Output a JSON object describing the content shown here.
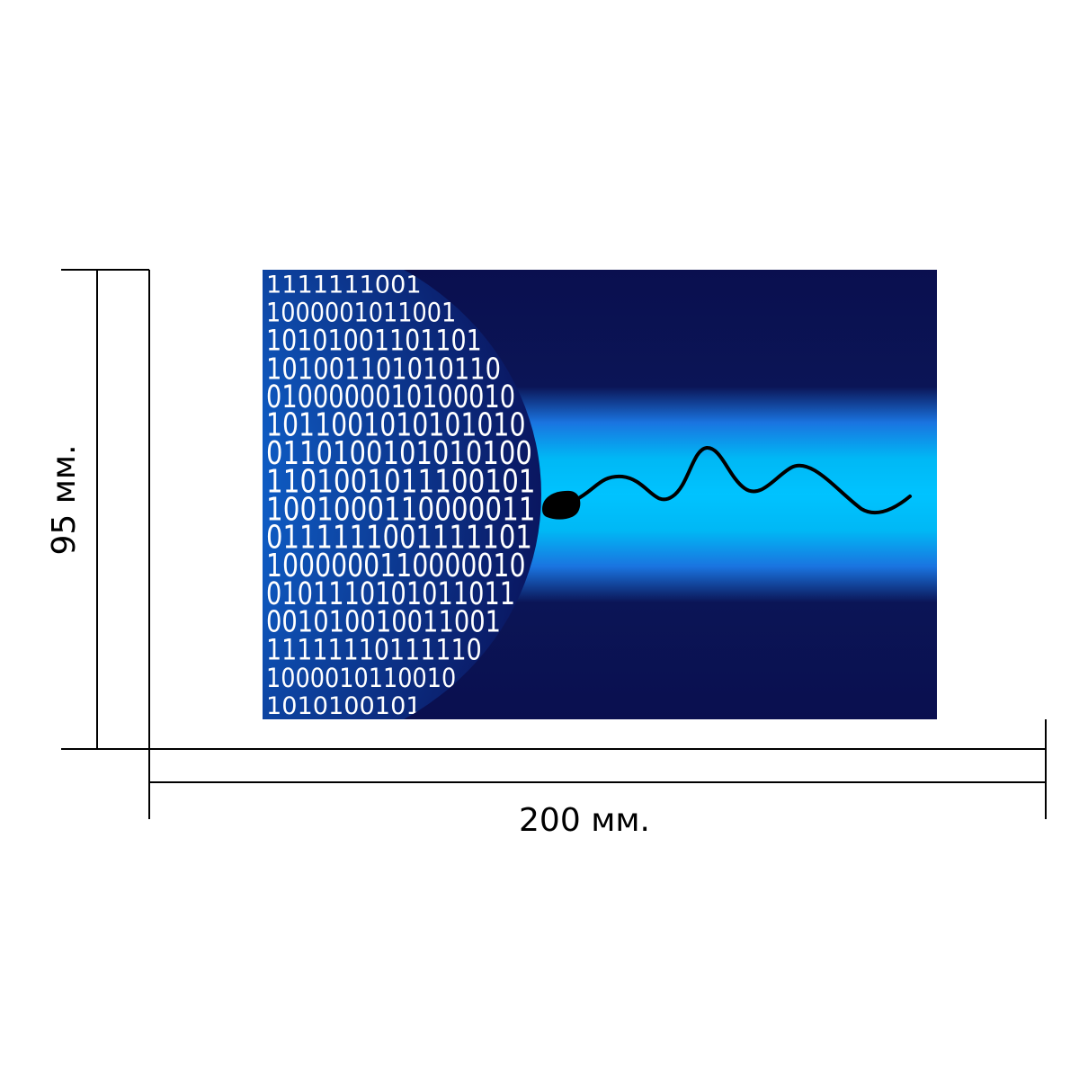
{
  "dimensions": {
    "width_label": "200 мм.",
    "height_label": "95 мм."
  },
  "artwork": {
    "subject": "binary sphere with sperm",
    "colors": {
      "background_dark": "#0a0f4f",
      "glow_light": "#00c3ff",
      "glow_mid": "#1a74e0",
      "binary_digits": "#ffffff",
      "sperm": "#000000"
    },
    "binary_rows": [
      "1111111001",
      "1000001011001",
      "10101001101101",
      "101001101010110",
      "0100000010100010",
      "1011001010101010",
      "0110100101010100",
      "1101001011100101",
      "1001000110000011",
      "0111111001111101",
      "1000000110000010",
      "0101110101011011",
      "001010010011001",
      "11111110111110",
      "1000010110010",
      "1010100101"
    ]
  }
}
